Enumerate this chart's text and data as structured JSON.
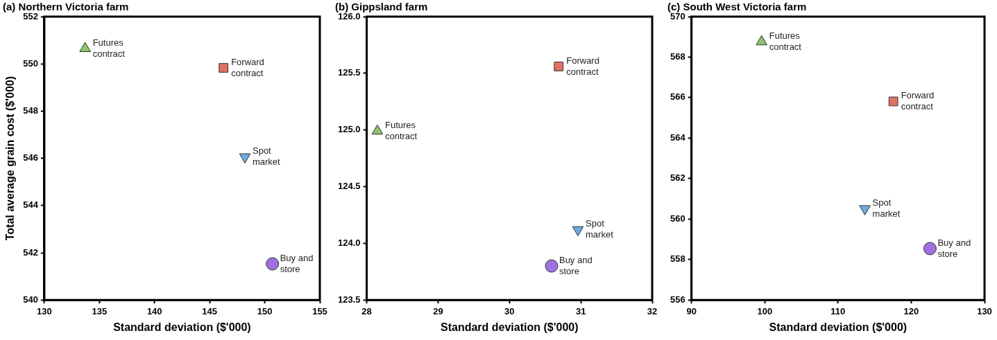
{
  "chart_data": [
    {
      "type": "scatter",
      "title": "(a) Northern Victoria farm",
      "xlabel": "Standard deviation ($'000)",
      "ylabel": "Total average grain cost ($'000)",
      "xlim": [
        130,
        155
      ],
      "xticks": [
        130,
        135,
        140,
        145,
        150,
        155
      ],
      "ylim": [
        540,
        552
      ],
      "yticks": [
        540,
        542,
        544,
        546,
        548,
        550,
        552
      ],
      "grid": false,
      "legend": false,
      "series": [
        {
          "name": "Futures contract",
          "color": "#8cc46c",
          "marker": "triangle",
          "x": [
            133.7
          ],
          "values": [
            550.65
          ]
        },
        {
          "name": "Forward contract",
          "color": "#e07264",
          "marker": "square",
          "x": [
            146.26
          ],
          "values": [
            549.83
          ]
        },
        {
          "name": "Spot market",
          "color": "#70a8e0",
          "marker": "triangle-down",
          "x": [
            148.2
          ],
          "values": [
            546.06
          ]
        },
        {
          "name": "Buy and store",
          "color": "#a070e0",
          "marker": "circle",
          "x": [
            150.7
          ],
          "values": [
            541.53
          ]
        }
      ]
    },
    {
      "type": "scatter",
      "title": "(b) Gippsland farm",
      "xlabel": "Standard deviation ($'000)",
      "xlim": [
        28,
        32
      ],
      "xticks": [
        28,
        29,
        30,
        31,
        32
      ],
      "ylim": [
        123.5,
        126
      ],
      "yticks": [
        123.5,
        {
          "value": 124,
          "label": "124.0"
        },
        124.5,
        {
          "value": 125,
          "label": "125.0"
        },
        125.5,
        {
          "value": 126,
          "label": "126.0"
        }
      ],
      "grid": false,
      "legend": false,
      "series": [
        {
          "name": "Futures contract",
          "color": "#8cc46c",
          "marker": "triangle",
          "x": [
            28.15
          ],
          "values": [
            124.99
          ]
        },
        {
          "name": "Forward contract",
          "color": "#e07264",
          "marker": "square",
          "x": [
            30.69
          ],
          "values": [
            125.56
          ]
        },
        {
          "name": "Spot market",
          "color": "#70a8e0",
          "marker": "triangle-down",
          "x": [
            30.96
          ],
          "values": [
            124.12
          ]
        },
        {
          "name": "Buy and store",
          "color": "#a070e0",
          "marker": "circle",
          "x": [
            30.59
          ],
          "values": [
            123.8
          ]
        }
      ]
    },
    {
      "type": "scatter",
      "title": "(c) South West Victoria farm",
      "xlabel": "Standard deviation ($'000)",
      "xlim": [
        90,
        130
      ],
      "xticks": [
        90,
        100,
        110,
        120,
        130
      ],
      "ylim": [
        556,
        570
      ],
      "yticks": [
        556,
        558,
        560,
        562,
        564,
        566,
        568,
        570
      ],
      "grid": false,
      "legend": false,
      "series": [
        {
          "name": "Futures contract",
          "color": "#8cc46c",
          "marker": "triangle",
          "x": [
            99.57
          ],
          "values": [
            568.76
          ]
        },
        {
          "name": "Forward contract",
          "color": "#e07264",
          "marker": "square",
          "x": [
            117.56
          ],
          "values": [
            565.81
          ]
        },
        {
          "name": "Spot market",
          "color": "#70a8e0",
          "marker": "triangle-down",
          "x": [
            113.67
          ],
          "values": [
            560.51
          ]
        },
        {
          "name": "Buy and store",
          "color": "#a070e0",
          "marker": "circle",
          "x": [
            122.56
          ],
          "values": [
            558.54
          ]
        }
      ]
    }
  ]
}
